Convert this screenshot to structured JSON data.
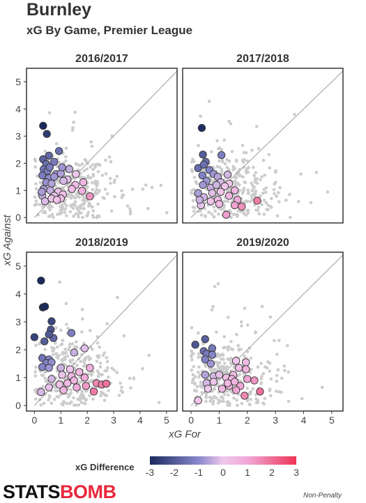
{
  "header": {
    "title": "Burnley",
    "subtitle": "xG By Game, Premier League"
  },
  "footer": {
    "logo_part1": "STATS",
    "logo_part2": "BOMB",
    "note": "Non-Penalty"
  },
  "chart_data": {
    "type": "scatter",
    "xlabel": "xG For",
    "ylabel": "xG Against",
    "xlim": [
      -0.3,
      5.4
    ],
    "ylim": [
      -0.2,
      5.5
    ],
    "x_ticks": [
      0,
      1,
      2,
      3,
      4,
      5
    ],
    "y_ticks": [
      0,
      1,
      2,
      3,
      4,
      5
    ],
    "diagonal_line": true,
    "grid": false,
    "colors": {
      "neg3": "#1a2a5e",
      "neg1": "#8888cc",
      "zero": "#f0c8ec",
      "pos1": "#f0a8d8",
      "pos3": "#ee3355",
      "background_points": "#cccccc"
    },
    "legend": {
      "title": "xG Difference",
      "position": "bottom",
      "ticks": [
        -3,
        -2,
        -1,
        0,
        1,
        2,
        3
      ]
    },
    "panels": [
      {
        "title": "2016/2017",
        "points": [
          [
            0.33,
            3.38
          ],
          [
            0.47,
            3.08
          ],
          [
            0.93,
            2.45
          ],
          [
            0.55,
            2.28
          ],
          [
            0.33,
            2.15
          ],
          [
            0.75,
            2.05
          ],
          [
            0.45,
            1.97
          ],
          [
            0.35,
            1.78
          ],
          [
            0.5,
            1.72
          ],
          [
            0.58,
            1.85
          ],
          [
            0.82,
            1.6
          ],
          [
            1.0,
            1.62
          ],
          [
            1.05,
            1.85
          ],
          [
            1.32,
            1.78
          ],
          [
            0.3,
            1.55
          ],
          [
            0.55,
            1.45
          ],
          [
            0.75,
            1.5
          ],
          [
            1.57,
            1.6
          ],
          [
            1.25,
            1.4
          ],
          [
            0.45,
            1.3
          ],
          [
            0.65,
            1.25
          ],
          [
            1.1,
            1.35
          ],
          [
            1.85,
            1.3
          ],
          [
            1.55,
            1.2
          ],
          [
            0.35,
            1.05
          ],
          [
            0.6,
            1.0
          ],
          [
            0.9,
            0.95
          ],
          [
            1.42,
            1.05
          ],
          [
            1.8,
            0.98
          ],
          [
            0.3,
            0.8
          ],
          [
            0.75,
            0.8
          ],
          [
            1.08,
            0.85
          ],
          [
            1.0,
            0.7
          ],
          [
            2.1,
            0.78
          ],
          [
            0.4,
            0.6
          ],
          [
            0.65,
            0.7
          ],
          [
            0.85,
            0.65
          ],
          [
            0.28,
            0.95
          ]
        ]
      },
      {
        "title": "2017/2018",
        "points": [
          [
            0.38,
            3.3
          ],
          [
            0.42,
            2.32
          ],
          [
            0.52,
            2.05
          ],
          [
            1.08,
            2.3
          ],
          [
            0.25,
            1.82
          ],
          [
            0.45,
            1.95
          ],
          [
            0.65,
            1.75
          ],
          [
            0.8,
            1.6
          ],
          [
            1.3,
            1.58
          ],
          [
            0.4,
            1.55
          ],
          [
            0.95,
            1.5
          ],
          [
            0.55,
            1.35
          ],
          [
            1.05,
            1.3
          ],
          [
            1.35,
            1.25
          ],
          [
            0.25,
            0.9
          ],
          [
            0.42,
            1.2
          ],
          [
            0.7,
            1.1
          ],
          [
            0.9,
            1.2
          ],
          [
            1.2,
            1.15
          ],
          [
            1.55,
            1.0
          ],
          [
            0.45,
            0.75
          ],
          [
            0.75,
            0.9
          ],
          [
            1.05,
            0.95
          ],
          [
            1.35,
            0.8
          ],
          [
            0.35,
            0.45
          ],
          [
            0.95,
            0.65
          ],
          [
            1.65,
            0.65
          ],
          [
            1.55,
            0.45
          ],
          [
            1.8,
            0.4
          ],
          [
            2.35,
            0.62
          ],
          [
            1.25,
            0.1
          ],
          [
            1.0,
            0.5
          ],
          [
            0.7,
            0.6
          ],
          [
            0.3,
            0.65
          ]
        ]
      },
      {
        "title": "2018/2019",
        "points": [
          [
            0.25,
            4.48
          ],
          [
            0.32,
            3.52
          ],
          [
            0.4,
            3.55
          ],
          [
            0.65,
            3.02
          ],
          [
            0.62,
            2.72
          ],
          [
            0.72,
            2.42
          ],
          [
            1.4,
            2.6
          ],
          [
            0.55,
            2.55
          ],
          [
            0.0,
            2.45
          ],
          [
            0.38,
            2.3
          ],
          [
            1.9,
            2.05
          ],
          [
            1.5,
            1.9
          ],
          [
            0.3,
            1.7
          ],
          [
            0.55,
            1.65
          ],
          [
            0.45,
            1.52
          ],
          [
            0.65,
            1.55
          ],
          [
            0.3,
            1.38
          ],
          [
            0.55,
            1.35
          ],
          [
            1.0,
            1.35
          ],
          [
            2.1,
            1.35
          ],
          [
            1.35,
            1.3
          ],
          [
            1.7,
            1.2
          ],
          [
            1.05,
            1.1
          ],
          [
            1.4,
            1.05
          ],
          [
            1.9,
            1.0
          ],
          [
            0.65,
            0.95
          ],
          [
            1.5,
            0.9
          ],
          [
            1.25,
            0.8
          ],
          [
            0.95,
            0.75
          ],
          [
            2.35,
            0.8
          ],
          [
            2.55,
            0.75
          ],
          [
            2.72,
            0.78
          ],
          [
            1.6,
            0.65
          ],
          [
            1.95,
            0.7
          ],
          [
            1.1,
            0.55
          ],
          [
            2.25,
            0.5
          ],
          [
            0.55,
            0.65
          ],
          [
            0.25,
            0.48
          ]
        ]
      },
      {
        "title": "2019/2020",
        "points": [
          [
            0.15,
            2.18
          ],
          [
            0.5,
            2.38
          ],
          [
            0.75,
            2.05
          ],
          [
            0.45,
            1.95
          ],
          [
            0.55,
            1.85
          ],
          [
            0.75,
            1.82
          ],
          [
            0.5,
            1.65
          ],
          [
            0.7,
            1.5
          ],
          [
            1.6,
            1.6
          ],
          [
            1.95,
            1.55
          ],
          [
            1.7,
            1.35
          ],
          [
            1.95,
            1.3
          ],
          [
            1.5,
            1.1
          ],
          [
            0.5,
            1.1
          ],
          [
            0.8,
            1.05
          ],
          [
            1.0,
            1.1
          ],
          [
            1.25,
            1.0
          ],
          [
            1.45,
            0.95
          ],
          [
            2.0,
            0.95
          ],
          [
            2.25,
            0.9
          ],
          [
            0.55,
            0.8
          ],
          [
            0.8,
            0.85
          ],
          [
            1.1,
            0.6
          ],
          [
            1.35,
            0.7
          ],
          [
            1.55,
            0.85
          ],
          [
            1.75,
            0.7
          ],
          [
            1.6,
            0.55
          ],
          [
            2.45,
            0.5
          ],
          [
            1.9,
            0.35
          ],
          [
            0.6,
            0.6
          ],
          [
            0.25,
            0.18
          ],
          [
            1.3,
            0.8
          ]
        ]
      }
    ]
  }
}
